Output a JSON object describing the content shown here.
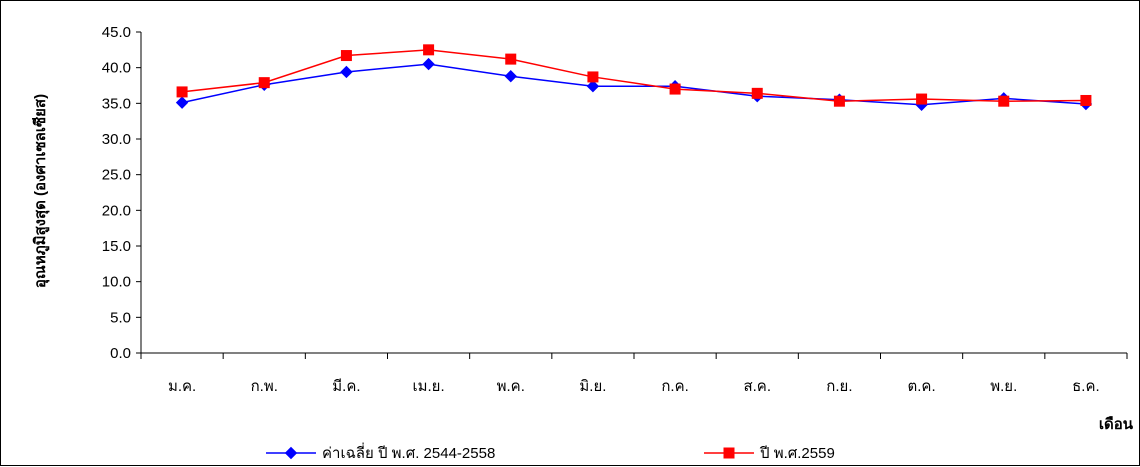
{
  "chart_data": {
    "type": "line",
    "title": "",
    "xlabel": "เดือน",
    "ylabel": "อุณหภูมิสูงสุด (องศาเซลเซียส)",
    "ylim": [
      0,
      45
    ],
    "yticks": [
      "0.0",
      "5.0",
      "10.0",
      "15.0",
      "20.0",
      "25.0",
      "30.0",
      "35.0",
      "40.0",
      "45.0"
    ],
    "grid": false,
    "legend_position": "bottom",
    "categories": [
      "ม.ค.",
      "ก.พ.",
      "มี.ค.",
      "เม.ย.",
      "พ.ค.",
      "มิ.ย.",
      "ก.ค.",
      "ส.ค.",
      "ก.ย.",
      "ต.ค.",
      "พ.ย.",
      "ธ.ค."
    ],
    "series": [
      {
        "name": "ค่าเฉลี่ย ปี พ.ศ. 2544-2558",
        "color": "#0000ff",
        "marker": "diamond",
        "values": [
          35.1,
          37.6,
          39.4,
          40.5,
          38.8,
          37.4,
          37.4,
          36.0,
          35.5,
          34.8,
          35.7,
          34.9
        ]
      },
      {
        "name": "ปี พ.ศ.2559",
        "color": "#ff0000",
        "marker": "square",
        "values": [
          36.6,
          37.9,
          41.7,
          42.5,
          41.2,
          38.7,
          37.0,
          36.4,
          35.3,
          35.6,
          35.3,
          35.4
        ]
      }
    ]
  }
}
